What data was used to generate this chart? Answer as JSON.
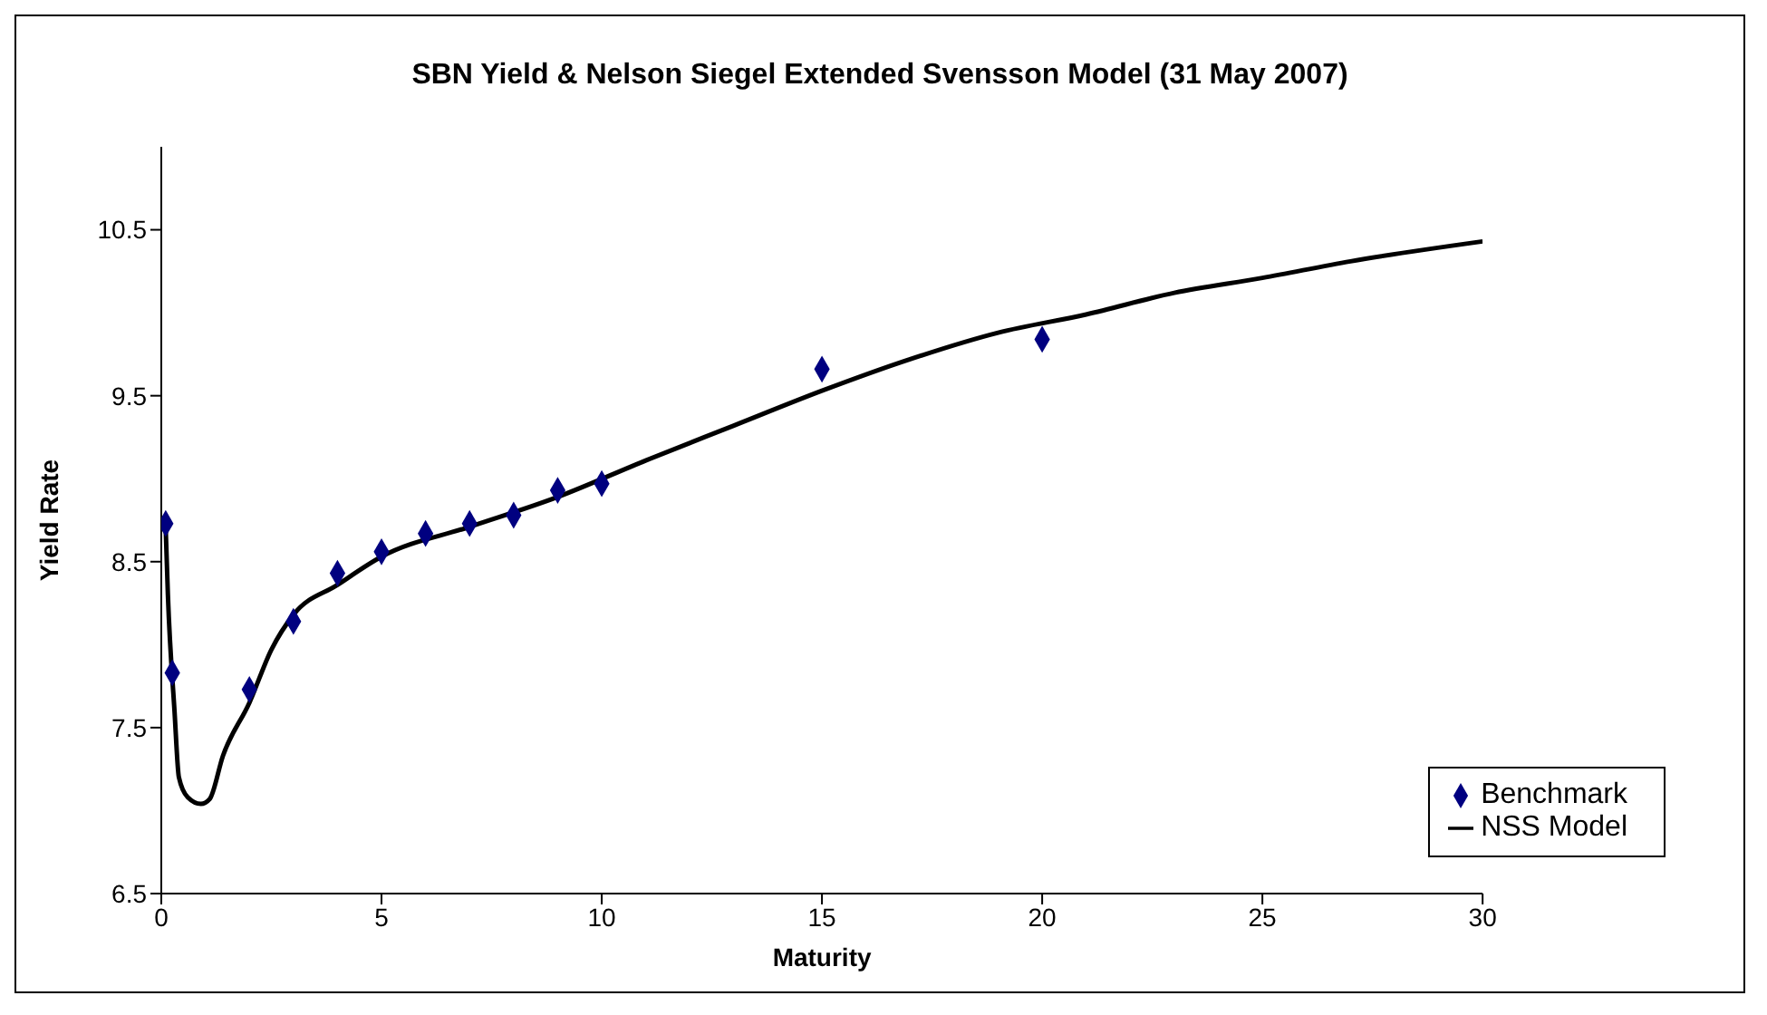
{
  "chart_data": {
    "type": "scatter",
    "title": "SBN Yield & Nelson Siegel Extended Svensson Model (31 May 2007)",
    "xlabel": "Maturity",
    "ylabel": "Yield Rate",
    "xlim": [
      0,
      30
    ],
    "xticks": [
      0,
      5,
      10,
      15,
      20,
      25,
      30
    ],
    "ylim": [
      6.5,
      11
    ],
    "yticks": [
      6.5,
      7.5,
      8.5,
      9.5,
      10.5
    ],
    "grid": false,
    "legend": "bottom right",
    "series": [
      {
        "name": "Benchmark",
        "marker": "diamond",
        "color": "#000080",
        "x": [
          0.1,
          0.25,
          2,
          3,
          4,
          5,
          6,
          7,
          8,
          9,
          10,
          15,
          20
        ],
        "values": [
          8.73,
          7.83,
          7.73,
          8.14,
          8.43,
          8.56,
          8.67,
          8.73,
          8.78,
          8.93,
          8.97,
          9.66,
          9.84
        ]
      },
      {
        "name": "NSS Model",
        "type": "line",
        "marker": "none",
        "line_style": "solid",
        "color": "#000000",
        "x": [
          0.1,
          0.15,
          0.3,
          0.4,
          0.6,
          0.9,
          1.1,
          1.4,
          2,
          2.5,
          3,
          4,
          5,
          7,
          9,
          11,
          13,
          15,
          17,
          19,
          21,
          23,
          25,
          27,
          30
        ],
        "values": [
          8.7,
          8.3,
          7.6,
          7.2,
          7.08,
          7.04,
          7.07,
          7.33,
          7.65,
          7.97,
          8.18,
          8.36,
          8.53,
          8.71,
          8.89,
          9.11,
          9.32,
          9.53,
          9.72,
          9.88,
          9.99,
          10.12,
          10.21,
          10.31,
          10.43
        ]
      }
    ]
  }
}
